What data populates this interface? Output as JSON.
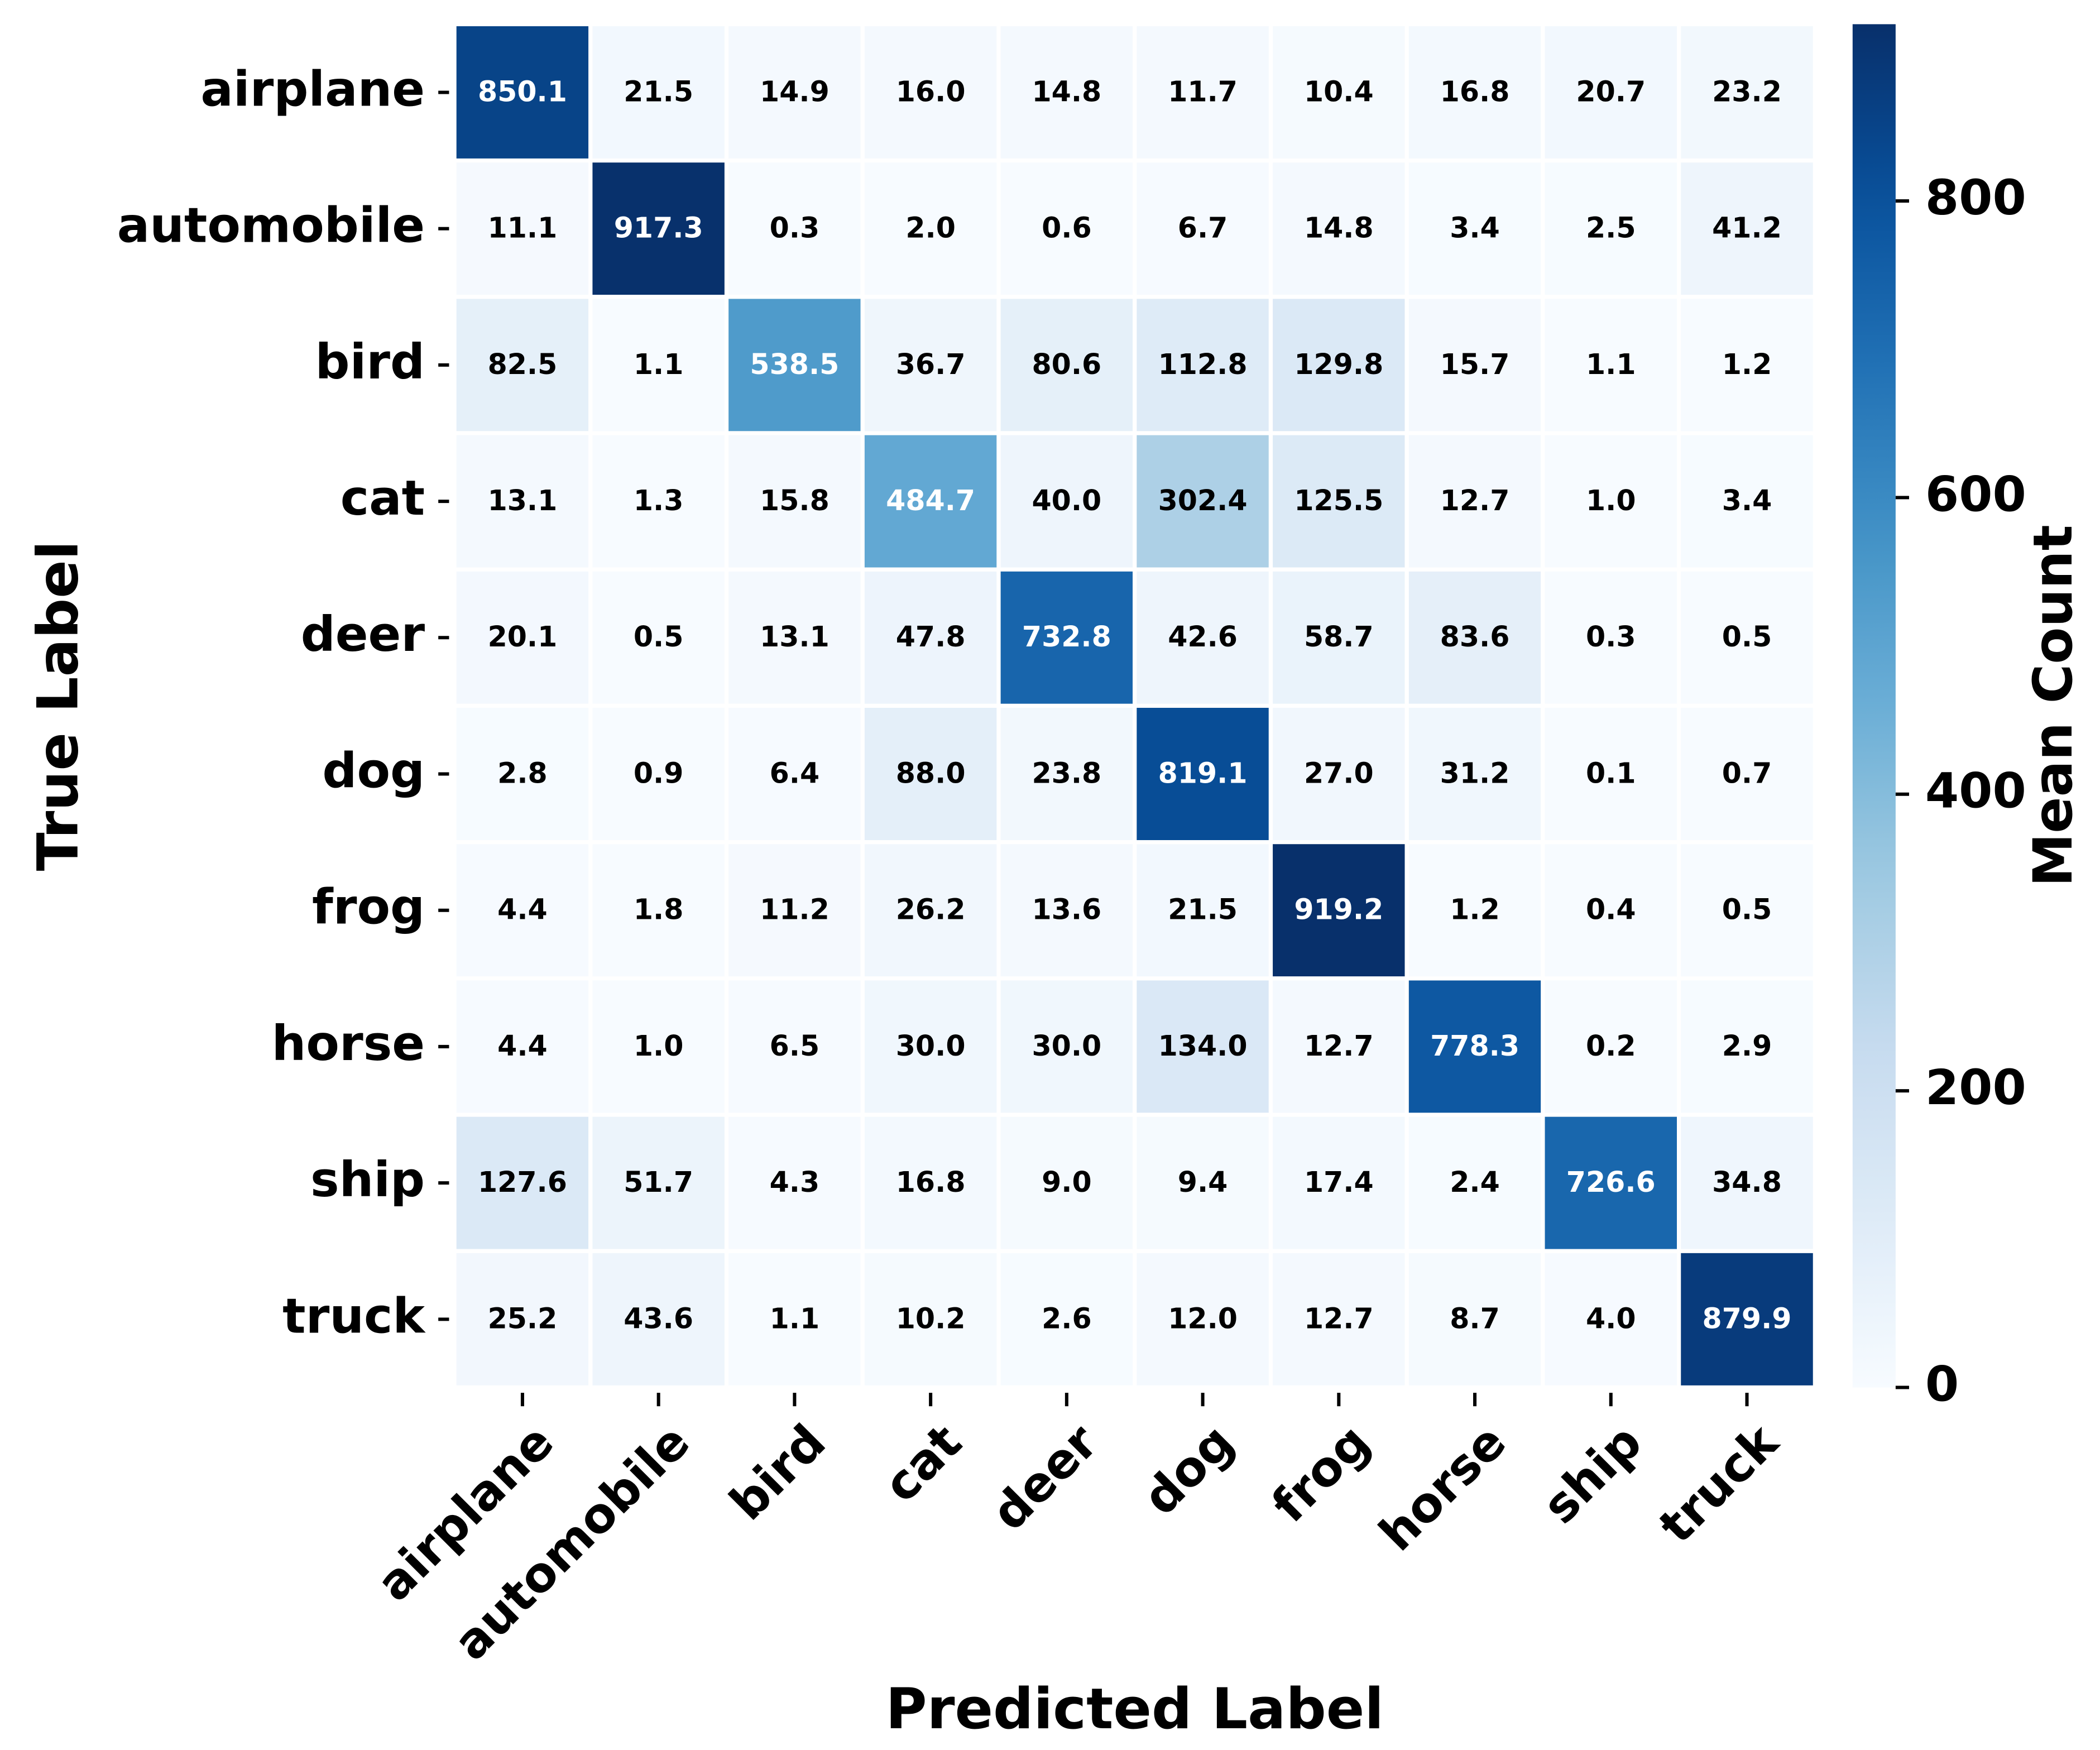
{
  "chart_data": {
    "type": "heatmap",
    "x_label": "Predicted Label",
    "y_label": "True Label",
    "colorbar_label": "Mean Count",
    "x_categories": [
      "airplane",
      "automobile",
      "bird",
      "cat",
      "deer",
      "dog",
      "frog",
      "horse",
      "ship",
      "truck"
    ],
    "y_categories": [
      "airplane",
      "automobile",
      "bird",
      "cat",
      "deer",
      "dog",
      "frog",
      "horse",
      "ship",
      "truck"
    ],
    "values": [
      [
        850.1,
        21.5,
        14.9,
        16.0,
        14.8,
        11.7,
        10.4,
        16.8,
        20.7,
        23.2
      ],
      [
        11.1,
        917.3,
        0.3,
        2.0,
        0.6,
        6.7,
        14.8,
        3.4,
        2.5,
        41.2
      ],
      [
        82.5,
        1.1,
        538.5,
        36.7,
        80.6,
        112.8,
        129.8,
        15.7,
        1.1,
        1.2
      ],
      [
        13.1,
        1.3,
        15.8,
        484.7,
        40.0,
        302.4,
        125.5,
        12.7,
        1.0,
        3.4
      ],
      [
        20.1,
        0.5,
        13.1,
        47.8,
        732.8,
        42.6,
        58.7,
        83.6,
        0.3,
        0.5
      ],
      [
        2.8,
        0.9,
        6.4,
        88.0,
        23.8,
        819.1,
        27.0,
        31.2,
        0.1,
        0.7
      ],
      [
        4.4,
        1.8,
        11.2,
        26.2,
        13.6,
        21.5,
        919.2,
        1.2,
        0.4,
        0.5
      ],
      [
        4.4,
        1.0,
        6.5,
        30.0,
        30.0,
        134.0,
        12.7,
        778.3,
        0.2,
        2.9
      ],
      [
        127.6,
        51.7,
        4.3,
        16.8,
        9.0,
        9.4,
        17.4,
        2.4,
        726.6,
        34.8
      ],
      [
        25.2,
        43.6,
        1.1,
        10.2,
        2.6,
        12.0,
        12.7,
        8.7,
        4.0,
        879.9
      ]
    ],
    "value_labels": [
      [
        "850.1",
        "21.5",
        "14.9",
        "16.0",
        "14.8",
        "11.7",
        "10.4",
        "16.8",
        "20.7",
        "23.2"
      ],
      [
        "11.1",
        "917.3",
        "0.3",
        "2.0",
        "0.6",
        "6.7",
        "14.8",
        "3.4",
        "2.5",
        "41.2"
      ],
      [
        "82.5",
        "1.1",
        "538.5",
        "36.7",
        "80.6",
        "112.8",
        "129.8",
        "15.7",
        "1.1",
        "1.2"
      ],
      [
        "13.1",
        "1.3",
        "15.8",
        "484.7",
        "40.0",
        "302.4",
        "125.5",
        "12.7",
        "1.0",
        "3.4"
      ],
      [
        "20.1",
        "0.5",
        "13.1",
        "47.8",
        "732.8",
        "42.6",
        "58.7",
        "83.6",
        "0.3",
        "0.5"
      ],
      [
        "2.8",
        "0.9",
        "6.4",
        "88.0",
        "23.8",
        "819.1",
        "27.0",
        "31.2",
        "0.1",
        "0.7"
      ],
      [
        "4.4",
        "1.8",
        "11.2",
        "26.2",
        "13.6",
        "21.5",
        "919.2",
        "1.2",
        "0.4",
        "0.5"
      ],
      [
        "4.4",
        "1.0",
        "6.5",
        "30.0",
        "30.0",
        "134.0",
        "12.7",
        "778.3",
        "0.2",
        "2.9"
      ],
      [
        "127.6",
        "51.7",
        "4.3",
        "16.8",
        "9.0",
        "9.4",
        "17.4",
        "2.4",
        "726.6",
        "34.8"
      ],
      [
        "25.2",
        "43.6",
        "1.1",
        "10.2",
        "2.6",
        "12.0",
        "12.7",
        "8.7",
        "4.0",
        "879.9"
      ]
    ],
    "colormap": [
      "#f7fbff",
      "#deebf7",
      "#c6dbef",
      "#9ecae1",
      "#6baed6",
      "#4292c6",
      "#2171b5",
      "#08519c",
      "#08306b"
    ],
    "zlim": [
      0,
      919.2
    ],
    "zticks": [
      0,
      200,
      400,
      600,
      800
    ]
  }
}
